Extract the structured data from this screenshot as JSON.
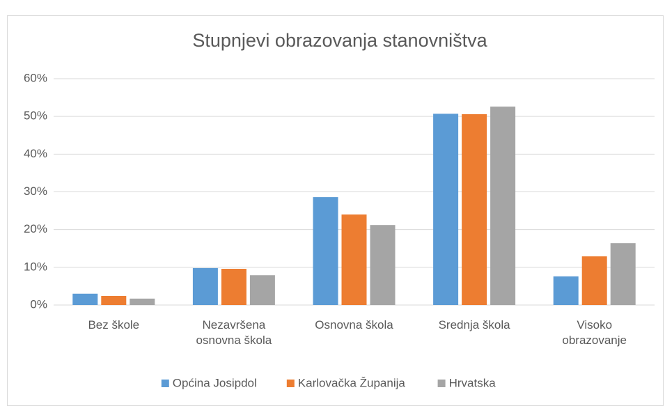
{
  "chart_data": {
    "type": "bar",
    "title": "Stupnjevi obrazovanja stanovništva",
    "categories": [
      "Bez škole",
      "Nezavršena osnovna škola",
      "Osnovna škola",
      "Srednja škola",
      "Visoko obrazovanje"
    ],
    "series": [
      {
        "name": "Općina Josipdol",
        "color": "#5b9bd5",
        "values": [
          3.0,
          9.8,
          28.6,
          50.7,
          7.6
        ]
      },
      {
        "name": "Karlovačka Županija",
        "color": "#ed7d31",
        "values": [
          2.4,
          9.6,
          24.0,
          50.6,
          12.9
        ]
      },
      {
        "name": "Hrvatska",
        "color": "#a5a5a5",
        "values": [
          1.7,
          7.9,
          21.2,
          52.6,
          16.4
        ]
      }
    ],
    "ylim": [
      0,
      60
    ],
    "yticks": [
      {
        "value": 0,
        "label": "0%"
      },
      {
        "value": 10,
        "label": "10%"
      },
      {
        "value": 20,
        "label": "20%"
      },
      {
        "value": 30,
        "label": "30%"
      },
      {
        "value": 40,
        "label": "40%"
      },
      {
        "value": 50,
        "label": "50%"
      },
      {
        "value": 60,
        "label": "60%"
      }
    ],
    "grid": true,
    "legend": "bottom"
  }
}
